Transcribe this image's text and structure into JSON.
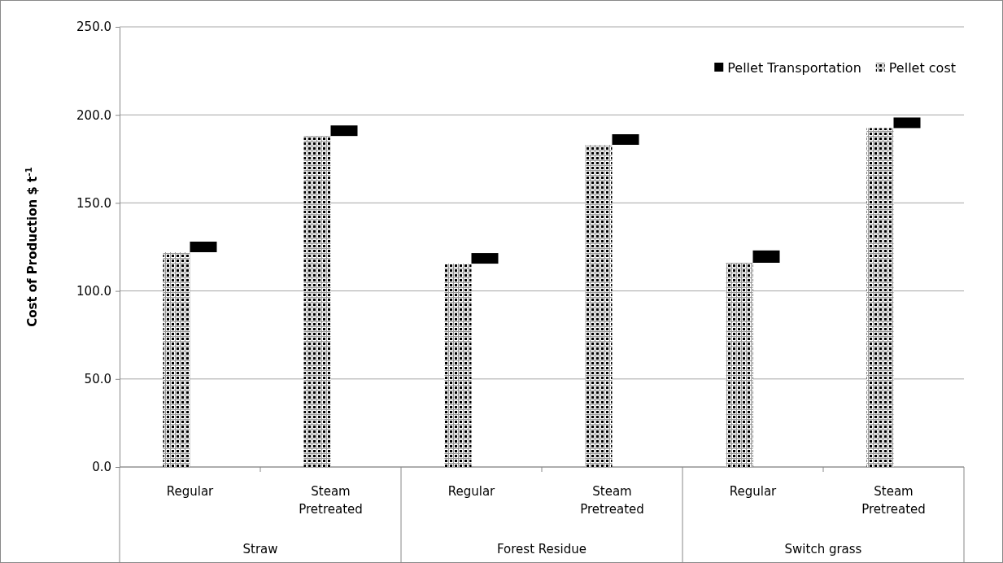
{
  "chart_data": {
    "type": "bar",
    "ylabel": "Cost of Production $ t$^{-1}$",
    "categories": [
      "Regular",
      "Steam Pretreated",
      "Regular",
      "Steam Pretreated",
      "Regular",
      "Steam Pretreated"
    ],
    "annotations": [
      "Straw",
      "Forest Residue",
      "Switch grass"
    ],
    "series": [
      {
        "name": "Pellet cost",
        "color": "#000000",
        "values": [
          122,
          188,
          115.5,
          183,
          116,
          192.5
        ]
      },
      {
        "name": "Pellet Transportation",
        "color": "#000000",
        "values": [
          6,
          6,
          6,
          6,
          7,
          6
        ],
        "base": [
          122,
          188,
          115.5,
          183,
          116,
          192.5
        ]
      }
    ],
    "ylim": [
      0,
      250
    ],
    "yticks": [
      {
        "value": 0,
        "label": "0.0"
      },
      {
        "value": 50,
        "label": "50.0"
      },
      {
        "value": 100,
        "label": "100.0"
      },
      {
        "value": 150,
        "label": "150.0"
      },
      {
        "value": 200,
        "label": "200.0"
      },
      {
        "value": 250,
        "label": "250.0"
      }
    ],
    "grid": "y",
    "legend": "top right"
  }
}
